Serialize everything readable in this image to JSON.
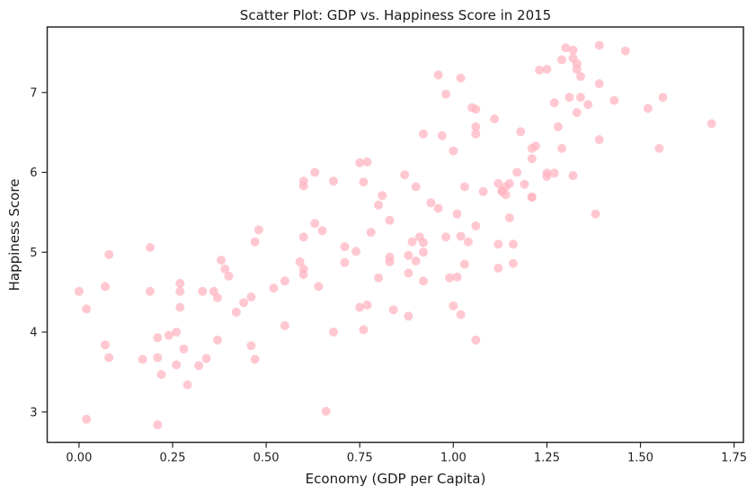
{
  "chart_data": {
    "type": "scatter",
    "title": "Scatter Plot: GDP vs. Happiness Score in 2015",
    "xlabel": "Economy (GDP per Capita)",
    "ylabel": "Happiness Score",
    "xlim": [
      -0.085,
      1.775
    ],
    "ylim": [
      2.62,
      7.82
    ],
    "xticks": [
      0.0,
      0.25,
      0.5,
      0.75,
      1.0,
      1.25,
      1.5,
      1.75
    ],
    "xtick_labels": [
      "0.00",
      "0.25",
      "0.50",
      "0.75",
      "1.00",
      "1.25",
      "1.50",
      "1.75"
    ],
    "yticks": [
      3,
      4,
      5,
      6,
      7
    ],
    "ytick_labels": [
      "3",
      "4",
      "5",
      "6",
      "7"
    ],
    "grid": false,
    "marker_color": "#ffb6c1",
    "marker_opacity": 0.75,
    "points": [
      [
        0.0,
        4.51
      ],
      [
        0.02,
        4.29
      ],
      [
        0.02,
        2.91
      ],
      [
        0.07,
        4.57
      ],
      [
        0.07,
        3.84
      ],
      [
        0.08,
        3.68
      ],
      [
        0.08,
        4.97
      ],
      [
        0.17,
        3.66
      ],
      [
        0.19,
        5.06
      ],
      [
        0.19,
        4.51
      ],
      [
        0.21,
        3.68
      ],
      [
        0.21,
        3.93
      ],
      [
        0.21,
        2.84
      ],
      [
        0.22,
        3.47
      ],
      [
        0.24,
        3.96
      ],
      [
        0.26,
        3.59
      ],
      [
        0.26,
        4.0
      ],
      [
        0.27,
        4.61
      ],
      [
        0.27,
        4.51
      ],
      [
        0.27,
        4.31
      ],
      [
        0.28,
        3.79
      ],
      [
        0.29,
        3.34
      ],
      [
        0.32,
        3.58
      ],
      [
        0.33,
        4.51
      ],
      [
        0.34,
        3.67
      ],
      [
        0.36,
        4.51
      ],
      [
        0.37,
        4.43
      ],
      [
        0.37,
        3.9
      ],
      [
        0.38,
        4.9
      ],
      [
        0.39,
        4.79
      ],
      [
        0.4,
        4.7
      ],
      [
        0.42,
        4.25
      ],
      [
        0.44,
        4.37
      ],
      [
        0.46,
        4.44
      ],
      [
        0.46,
        3.83
      ],
      [
        0.47,
        3.66
      ],
      [
        0.47,
        5.13
      ],
      [
        0.48,
        5.28
      ],
      [
        0.52,
        4.55
      ],
      [
        0.55,
        4.64
      ],
      [
        0.55,
        4.08
      ],
      [
        0.59,
        4.88
      ],
      [
        0.6,
        4.79
      ],
      [
        0.6,
        4.72
      ],
      [
        0.6,
        5.19
      ],
      [
        0.6,
        5.89
      ],
      [
        0.6,
        5.83
      ],
      [
        0.63,
        5.36
      ],
      [
        0.63,
        6.0
      ],
      [
        0.64,
        4.57
      ],
      [
        0.65,
        5.27
      ],
      [
        0.66,
        3.01
      ],
      [
        0.68,
        4.0
      ],
      [
        0.68,
        5.89
      ],
      [
        0.71,
        5.07
      ],
      [
        0.71,
        4.87
      ],
      [
        0.74,
        5.01
      ],
      [
        0.75,
        4.31
      ],
      [
        0.75,
        6.12
      ],
      [
        0.76,
        4.03
      ],
      [
        0.76,
        5.88
      ],
      [
        0.77,
        6.13
      ],
      [
        0.77,
        4.34
      ],
      [
        0.78,
        5.25
      ],
      [
        0.8,
        4.68
      ],
      [
        0.8,
        5.59
      ],
      [
        0.81,
        5.71
      ],
      [
        0.83,
        5.4
      ],
      [
        0.83,
        4.88
      ],
      [
        0.83,
        4.94
      ],
      [
        0.84,
        4.28
      ],
      [
        0.87,
        5.97
      ],
      [
        0.88,
        4.96
      ],
      [
        0.88,
        4.74
      ],
      [
        0.88,
        4.2
      ],
      [
        0.89,
        5.13
      ],
      [
        0.9,
        4.89
      ],
      [
        0.9,
        5.82
      ],
      [
        0.91,
        5.19
      ],
      [
        0.92,
        6.48
      ],
      [
        0.92,
        5.12
      ],
      [
        0.92,
        5.0
      ],
      [
        0.92,
        4.64
      ],
      [
        0.94,
        5.62
      ],
      [
        0.96,
        7.22
      ],
      [
        0.96,
        5.55
      ],
      [
        0.97,
        6.46
      ],
      [
        0.98,
        5.19
      ],
      [
        0.98,
        6.98
      ],
      [
        0.99,
        4.68
      ],
      [
        1.0,
        6.27
      ],
      [
        1.0,
        4.33
      ],
      [
        1.01,
        5.48
      ],
      [
        1.01,
        4.69
      ],
      [
        1.02,
        4.22
      ],
      [
        1.02,
        7.18
      ],
      [
        1.02,
        5.2
      ],
      [
        1.03,
        4.85
      ],
      [
        1.03,
        5.82
      ],
      [
        1.04,
        5.13
      ],
      [
        1.05,
        6.81
      ],
      [
        1.06,
        6.57
      ],
      [
        1.06,
        6.48
      ],
      [
        1.06,
        3.9
      ],
      [
        1.06,
        6.79
      ],
      [
        1.06,
        5.33
      ],
      [
        1.08,
        5.76
      ],
      [
        1.11,
        6.67
      ],
      [
        1.12,
        5.1
      ],
      [
        1.12,
        4.8
      ],
      [
        1.12,
        5.86
      ],
      [
        1.13,
        5.77
      ],
      [
        1.13,
        5.76
      ],
      [
        1.14,
        5.72
      ],
      [
        1.14,
        5.82
      ],
      [
        1.15,
        5.86
      ],
      [
        1.15,
        5.43
      ],
      [
        1.16,
        5.1
      ],
      [
        1.16,
        4.86
      ],
      [
        1.17,
        6.0
      ],
      [
        1.18,
        6.51
      ],
      [
        1.19,
        5.85
      ],
      [
        1.21,
        5.69
      ],
      [
        1.21,
        5.69
      ],
      [
        1.21,
        6.3
      ],
      [
        1.21,
        6.17
      ],
      [
        1.22,
        6.33
      ],
      [
        1.23,
        7.28
      ],
      [
        1.25,
        5.99
      ],
      [
        1.25,
        5.95
      ],
      [
        1.25,
        7.29
      ],
      [
        1.27,
        6.87
      ],
      [
        1.27,
        5.99
      ],
      [
        1.28,
        6.57
      ],
      [
        1.29,
        7.41
      ],
      [
        1.29,
        6.3
      ],
      [
        1.3,
        7.56
      ],
      [
        1.31,
        6.94
      ],
      [
        1.32,
        5.96
      ],
      [
        1.32,
        7.53
      ],
      [
        1.32,
        7.43
      ],
      [
        1.33,
        6.75
      ],
      [
        1.33,
        7.36
      ],
      [
        1.33,
        7.29
      ],
      [
        1.34,
        7.2
      ],
      [
        1.34,
        6.94
      ],
      [
        1.36,
        6.85
      ],
      [
        1.38,
        5.48
      ],
      [
        1.39,
        6.41
      ],
      [
        1.39,
        7.11
      ],
      [
        1.39,
        7.59
      ],
      [
        1.43,
        6.9
      ],
      [
        1.46,
        7.52
      ],
      [
        1.52,
        6.8
      ],
      [
        1.55,
        6.3
      ],
      [
        1.56,
        6.94
      ],
      [
        1.69,
        6.61
      ]
    ]
  }
}
